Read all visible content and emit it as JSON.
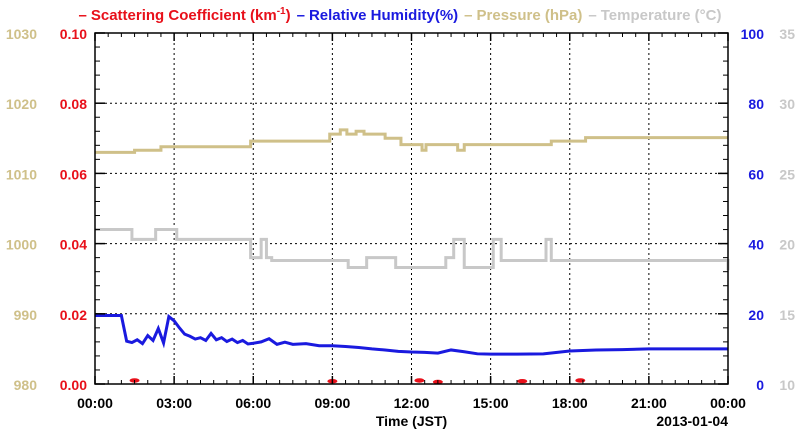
{
  "chart_data": {
    "type": "line",
    "legend": [
      {
        "key": "scat",
        "prefix": "Scattering Coefficient (km",
        "sup": "-1",
        "suffix": ")",
        "color": "#e8101a"
      },
      {
        "key": "rh",
        "prefix": "Relative Humidity(%)",
        "sup": "",
        "suffix": "",
        "color": "#1a1adf"
      },
      {
        "key": "pres",
        "prefix": "Pressure (hPa)",
        "sup": "",
        "suffix": "",
        "color": "#cfc089"
      },
      {
        "key": "temp",
        "prefix": "Temperature (°C)",
        "sup": "",
        "suffix": "",
        "color": "#c8c8c8"
      }
    ],
    "xlabel": "Time (JST)",
    "date_label": "2013-01-04",
    "x_ticks": [
      "00:00",
      "03:00",
      "06:00",
      "09:00",
      "12:00",
      "15:00",
      "18:00",
      "21:00",
      "00:00"
    ],
    "xlim_hours": [
      0,
      24
    ],
    "axes": {
      "pressure": {
        "ylim": [
          980,
          1030
        ],
        "ticks": [
          "980",
          "990",
          "1000",
          "1010",
          "1020",
          "1030"
        ],
        "color": "#cfc089"
      },
      "scattering": {
        "ylim": [
          0,
          0.1
        ],
        "ticks": [
          "0.00",
          "0.02",
          "0.04",
          "0.06",
          "0.08",
          "0.10"
        ],
        "color": "#e8101a"
      },
      "humidity": {
        "ylim": [
          0,
          100
        ],
        "ticks": [
          "0",
          "20",
          "40",
          "60",
          "80",
          "100"
        ],
        "color": "#1a1adf"
      },
      "temperature": {
        "ylim": [
          10,
          35
        ],
        "ticks": [
          "10",
          "15",
          "20",
          "25",
          "30",
          "35"
        ],
        "color": "#c8c8c8"
      }
    },
    "grid": true,
    "series": [
      {
        "name": "Pressure (hPa)",
        "axis": "pressure",
        "color": "#cfc089",
        "step": true,
        "x": [
          0,
          1.5,
          2.5,
          5.9,
          8.9,
          9.3,
          9.55,
          9.9,
          10.2,
          11.0,
          11.6,
          12.4,
          12.55,
          13.0,
          13.75,
          14.0,
          17.3,
          18.6,
          24
        ],
        "y": [
          1013,
          1013.3,
          1013.8,
          1014.6,
          1015.6,
          1016.2,
          1015.6,
          1016.0,
          1015.6,
          1015.0,
          1014.1,
          1013.3,
          1014.1,
          1014.1,
          1013.3,
          1014.1,
          1014.6,
          1015.1,
          1015.1
        ]
      },
      {
        "name": "Temperature (°C)",
        "axis": "temperature",
        "color": "#c8c8c8",
        "step": true,
        "x": [
          0,
          1.4,
          2.3,
          3.1,
          5.9,
          6.3,
          6.5,
          6.7,
          9.6,
          10.3,
          11.4,
          12.0,
          12.1,
          13.3,
          13.6,
          14.0,
          15.1,
          15.4,
          17.1,
          17.3,
          20.7,
          24
        ],
        "y": [
          21.0,
          20.3,
          21.0,
          20.3,
          19.0,
          20.3,
          19.0,
          18.8,
          18.3,
          19.0,
          18.3,
          18.3,
          18.3,
          19.0,
          20.3,
          18.3,
          20.3,
          18.8,
          20.3,
          18.8,
          18.8,
          18.1
        ]
      },
      {
        "name": "Relative Humidity(%)",
        "axis": "humidity",
        "color": "#1a1adf",
        "step": false,
        "x": [
          0,
          1.0,
          1.2,
          1.4,
          1.6,
          1.8,
          2.0,
          2.2,
          2.4,
          2.6,
          2.8,
          3.0,
          3.2,
          3.4,
          3.6,
          3.8,
          4.0,
          4.2,
          4.4,
          4.6,
          4.8,
          5.0,
          5.2,
          5.4,
          5.6,
          5.8,
          6.0,
          6.3,
          6.6,
          6.9,
          7.2,
          7.5,
          8.0,
          8.5,
          9.0,
          9.5,
          10.0,
          10.5,
          11.0,
          11.5,
          12.0,
          12.5,
          13.0,
          13.5,
          14.0,
          14.5,
          15.0,
          16.0,
          17.0,
          18.0,
          19.0,
          20.0,
          21.0,
          22.0,
          24.0
        ],
        "y": [
          19.5,
          19.5,
          12.2,
          11.8,
          12.6,
          11.5,
          13.8,
          12.4,
          15.8,
          11.7,
          19.2,
          18.0,
          16.0,
          14.2,
          13.6,
          12.8,
          13.2,
          12.4,
          14.4,
          12.6,
          13.2,
          12.1,
          12.8,
          11.8,
          12.4,
          11.4,
          11.6,
          12.0,
          12.9,
          11.3,
          11.9,
          11.3,
          11.5,
          10.9,
          10.9,
          10.7,
          10.4,
          10.0,
          9.7,
          9.3,
          9.1,
          9.0,
          8.8,
          9.7,
          9.2,
          8.6,
          8.5,
          8.5,
          8.6,
          9.4,
          9.7,
          9.8,
          10.0,
          10.0,
          10.0
        ]
      },
      {
        "name": "Scattering Coefficient (km-1)",
        "axis": "scattering",
        "color": "#e8101a",
        "step": false,
        "x": [
          1.5,
          9.0,
          12.3,
          13.0,
          16.2,
          18.4
        ],
        "y": [
          0.001,
          0.0008,
          0.001,
          0.0006,
          0.0008,
          0.001
        ]
      }
    ]
  }
}
